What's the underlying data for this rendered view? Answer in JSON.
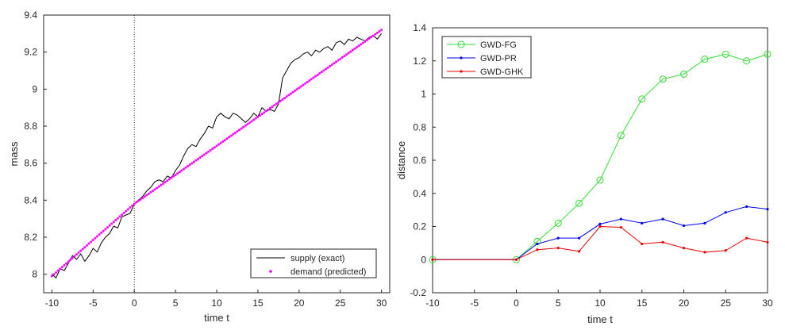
{
  "chart_data": [
    {
      "type": "line",
      "xlabel": "time t",
      "ylabel": "mass",
      "xlim": [
        -11,
        31
      ],
      "ylim": [
        7.9,
        9.4
      ],
      "xticks": [
        "-10",
        "-5",
        "0",
        "5",
        "10",
        "15",
        "20",
        "25",
        "30"
      ],
      "yticks": [
        "8",
        "8.2",
        "8.4",
        "8.6",
        "8.8",
        "9",
        "9.2",
        "9.4"
      ],
      "xtick_values": [
        -10,
        -5,
        0,
        5,
        10,
        15,
        20,
        25,
        30
      ],
      "ytick_values": [
        8,
        8.2,
        8.4,
        8.6,
        8.8,
        9,
        9.2,
        9.4
      ],
      "vline_x": 0,
      "legend_position": "bottom-right",
      "series": [
        {
          "name": "supply (exact)",
          "style": "solid",
          "color": "#000000",
          "x": [
            -10,
            -9.5,
            -9,
            -8.5,
            -8,
            -7.5,
            -7,
            -6.5,
            -6,
            -5.5,
            -5,
            -4.5,
            -4,
            -3.5,
            -3,
            -2.5,
            -2,
            -1.5,
            -1,
            -0.5,
            0,
            0.5,
            1,
            1.5,
            2,
            2.5,
            3,
            3.5,
            4,
            4.5,
            5,
            5.5,
            6,
            6.5,
            7,
            7.5,
            8,
            8.5,
            9,
            9.5,
            10,
            10.5,
            11,
            11.5,
            12,
            12.5,
            13,
            13.5,
            14,
            14.5,
            15,
            15.5,
            16,
            16.5,
            17,
            17.5,
            18,
            18.5,
            19,
            19.5,
            20,
            20.5,
            21,
            21.5,
            22,
            22.5,
            23,
            23.5,
            24,
            24.5,
            25,
            25.5,
            26,
            26.5,
            27,
            27.5,
            28,
            28.5,
            29,
            29.5,
            30
          ],
          "y": [
            8.0,
            7.98,
            8.03,
            8.02,
            8.06,
            8.1,
            8.08,
            8.11,
            8.07,
            8.1,
            8.14,
            8.12,
            8.17,
            8.2,
            8.22,
            8.26,
            8.25,
            8.31,
            8.32,
            8.33,
            8.38,
            8.4,
            8.42,
            8.45,
            8.47,
            8.5,
            8.51,
            8.5,
            8.53,
            8.52,
            8.56,
            8.59,
            8.64,
            8.68,
            8.7,
            8.69,
            8.73,
            8.76,
            8.8,
            8.79,
            8.85,
            8.87,
            8.85,
            8.84,
            8.87,
            8.86,
            8.84,
            8.82,
            8.84,
            8.87,
            8.85,
            8.9,
            8.88,
            8.89,
            8.88,
            8.92,
            9.06,
            9.1,
            9.14,
            9.16,
            9.17,
            9.19,
            9.2,
            9.18,
            9.21,
            9.2,
            9.22,
            9.23,
            9.21,
            9.25,
            9.26,
            9.24,
            9.27,
            9.26,
            9.28,
            9.27,
            9.26,
            9.28,
            9.29,
            9.27,
            9.3
          ]
        },
        {
          "name": "demand (predicted)",
          "style": "dots",
          "color": "#ff00ff",
          "x": [
            -10,
            0,
            30
          ],
          "y": [
            7.99,
            8.38,
            9.32
          ]
        }
      ]
    },
    {
      "type": "line",
      "xlabel": "time t",
      "ylabel": "distance",
      "xlim": [
        -10,
        30
      ],
      "ylim": [
        -0.2,
        1.4
      ],
      "xticks": [
        "-10",
        "-5",
        "0",
        "5",
        "10",
        "15",
        "20",
        "25",
        "30"
      ],
      "yticks": [
        "-0.2",
        "0",
        "0.2",
        "0.4",
        "0.6",
        "0.8",
        "1",
        "1.2",
        "1.4"
      ],
      "xtick_values": [
        -10,
        -5,
        0,
        5,
        10,
        15,
        20,
        25,
        30
      ],
      "ytick_values": [
        -0.2,
        0,
        0.2,
        0.4,
        0.6,
        0.8,
        1,
        1.2,
        1.4
      ],
      "legend_position": "top-left",
      "series": [
        {
          "name": "GWD-FG",
          "color": "#33dd33",
          "marker": "circle",
          "x": [
            -10,
            0,
            2.5,
            5,
            7.5,
            10,
            12.5,
            15,
            17.5,
            20,
            22.5,
            25,
            27.5,
            30
          ],
          "y": [
            0,
            0,
            0.11,
            0.22,
            0.34,
            0.48,
            0.75,
            0.97,
            1.09,
            1.12,
            1.21,
            1.24,
            1.2,
            1.24
          ]
        },
        {
          "name": "GWD-PR",
          "color": "#0000ee",
          "marker": "dot",
          "x": [
            -10,
            0,
            2.5,
            5,
            7.5,
            10,
            12.5,
            15,
            17.5,
            20,
            22.5,
            25,
            27.5,
            30
          ],
          "y": [
            0,
            0,
            0.095,
            0.13,
            0.13,
            0.215,
            0.245,
            0.22,
            0.245,
            0.205,
            0.22,
            0.285,
            0.32,
            0.305
          ]
        },
        {
          "name": "GWD-GHK",
          "color": "#ee0000",
          "marker": "dot",
          "x": [
            -10,
            0,
            2.5,
            5,
            7.5,
            10,
            12.5,
            15,
            17.5,
            20,
            22.5,
            25,
            27.5,
            30
          ],
          "y": [
            0,
            0,
            0.06,
            0.07,
            0.05,
            0.2,
            0.195,
            0.095,
            0.105,
            0.07,
            0.045,
            0.055,
            0.13,
            0.105
          ]
        }
      ]
    }
  ]
}
